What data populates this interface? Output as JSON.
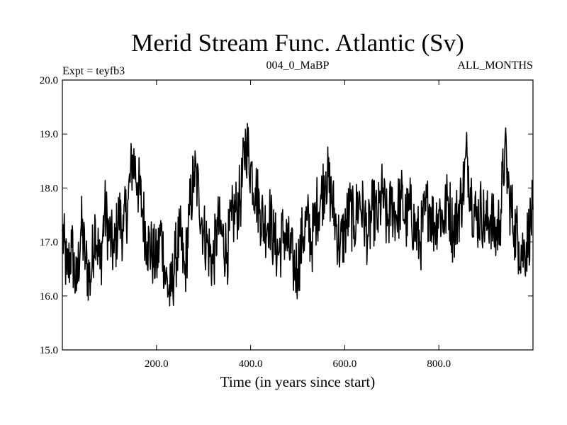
{
  "chart_data": {
    "type": "line",
    "title": "Merid Stream Func. Atlantic (Sv)",
    "subtitle_left": "Expt = teyfb3",
    "subtitle_center": "004_0_MaBP",
    "subtitle_right": "ALL_MONTHS",
    "xlabel": "Time (in years since start)",
    "ylabel": "",
    "xlim": [
      0,
      1000
    ],
    "ylim": [
      15.0,
      20.0
    ],
    "xticks": [
      200,
      400,
      600,
      800
    ],
    "xtick_labels": [
      "200.0",
      "400.0",
      "600.0",
      "800.0"
    ],
    "yticks": [
      15.0,
      16.0,
      17.0,
      18.0,
      19.0,
      20.0
    ],
    "ytick_labels": [
      "15.0",
      "16.0",
      "17.0",
      "18.0",
      "19.0",
      "20.0"
    ],
    "grid": false,
    "series": [
      {
        "name": "Merid Stream Func. Atlantic",
        "x": [
          0,
          10,
          20,
          30,
          40,
          50,
          60,
          70,
          80,
          90,
          100,
          110,
          120,
          130,
          140,
          150,
          160,
          170,
          180,
          190,
          200,
          210,
          220,
          230,
          240,
          250,
          260,
          270,
          280,
          290,
          300,
          310,
          320,
          330,
          340,
          350,
          360,
          370,
          380,
          390,
          400,
          410,
          420,
          430,
          440,
          450,
          460,
          470,
          480,
          490,
          500,
          510,
          520,
          530,
          540,
          550,
          560,
          570,
          580,
          590,
          600,
          610,
          620,
          630,
          640,
          650,
          660,
          670,
          680,
          690,
          700,
          710,
          720,
          730,
          740,
          750,
          760,
          770,
          780,
          790,
          800,
          810,
          820,
          830,
          840,
          850,
          860,
          870,
          880,
          890,
          900,
          910,
          920,
          930,
          940,
          950,
          960,
          970,
          980,
          990,
          1000
        ],
        "values": [
          17.2,
          16.4,
          16.9,
          16.1,
          17.3,
          16.6,
          16.3,
          17.4,
          16.5,
          17.6,
          17.1,
          16.8,
          17.5,
          17.2,
          17.8,
          18.6,
          18.1,
          17.6,
          17.0,
          16.8,
          16.6,
          17.2,
          16.3,
          16.0,
          16.7,
          17.1,
          16.4,
          17.5,
          18.3,
          17.9,
          17.2,
          16.9,
          16.6,
          17.3,
          17.1,
          16.8,
          17.4,
          17.6,
          17.9,
          18.9,
          18.4,
          18.0,
          17.6,
          17.3,
          17.5,
          17.0,
          16.8,
          17.2,
          16.9,
          16.6,
          16.5,
          17.1,
          17.4,
          17.0,
          17.6,
          17.8,
          18.3,
          17.9,
          17.4,
          16.9,
          17.2,
          17.6,
          17.3,
          17.8,
          17.5,
          17.1,
          17.6,
          17.4,
          17.9,
          17.3,
          17.7,
          17.5,
          17.8,
          17.4,
          17.6,
          17.2,
          17.0,
          17.5,
          17.7,
          17.3,
          17.6,
          17.4,
          17.8,
          17.2,
          17.5,
          17.9,
          18.6,
          17.8,
          17.4,
          17.6,
          17.3,
          17.5,
          17.1,
          17.4,
          18.7,
          17.8,
          17.3,
          17.0,
          16.8,
          17.1,
          17.6
        ]
      }
    ]
  }
}
